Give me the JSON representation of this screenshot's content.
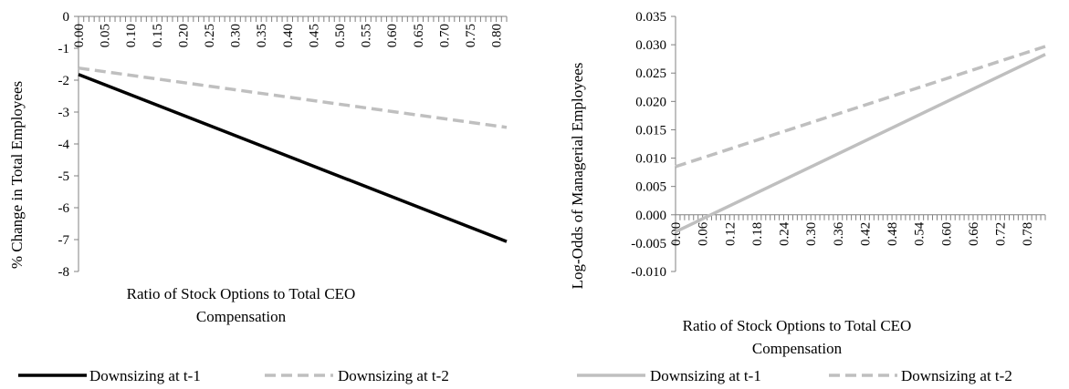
{
  "chart_data": [
    {
      "type": "line",
      "ylabel": "% Change in Total Employees",
      "xlabel_lines": [
        "Ratio of Stock Options to Total CEO",
        "Compensation"
      ],
      "xlim": [
        0,
        0.82
      ],
      "ylim": [
        -8,
        0
      ],
      "yticks": [
        "0",
        "-1",
        "-2",
        "-3",
        "-4",
        "-5",
        "-6",
        "-7",
        "-8"
      ],
      "ytick_values": [
        0,
        -1,
        -2,
        -3,
        -4,
        -5,
        -6,
        -7,
        -8
      ],
      "xticks": [
        "0.00",
        "0.05",
        "0.10",
        "0.15",
        "0.20",
        "0.25",
        "0.30",
        "0.35",
        "0.40",
        "0.45",
        "0.50",
        "0.55",
        "0.60",
        "0.65",
        "0.70",
        "0.75",
        "0.80"
      ],
      "xtick_values": [
        0,
        0.05,
        0.1,
        0.15,
        0.2,
        0.25,
        0.3,
        0.35,
        0.4,
        0.45,
        0.5,
        0.55,
        0.6,
        0.65,
        0.7,
        0.75,
        0.8
      ],
      "grid": false,
      "legend_position": "bottom",
      "series": [
        {
          "name": "Downsizing at t-1",
          "color": "#000000",
          "style": "solid",
          "x": [
            0,
            0.82
          ],
          "y": [
            -1.82,
            -7.06
          ]
        },
        {
          "name": "Downsizing at t-2",
          "color": "#bfbfbf",
          "style": "dashed",
          "x": [
            0,
            0.82
          ],
          "y": [
            -1.62,
            -3.48
          ]
        }
      ]
    },
    {
      "type": "line",
      "ylabel": "Log-Odds of Managerial Employees",
      "xlabel_lines": [
        "Ratio of Stock Options to Total CEO",
        "Compensation"
      ],
      "xlim": [
        0,
        0.82
      ],
      "ylim": [
        -0.01,
        0.035
      ],
      "yticks": [
        "0.035",
        "0.030",
        "0.025",
        "0.020",
        "0.015",
        "0.010",
        "0.005",
        "0.000",
        "-0.005",
        "-0.010"
      ],
      "ytick_values": [
        0.035,
        0.03,
        0.025,
        0.02,
        0.015,
        0.01,
        0.005,
        0.0,
        -0.005,
        -0.01
      ],
      "xticks": [
        "0.00",
        "0.06",
        "0.12",
        "0.18",
        "0.24",
        "0.30",
        "0.36",
        "0.42",
        "0.48",
        "0.54",
        "0.60",
        "0.66",
        "0.72",
        "0.78"
      ],
      "xtick_values": [
        0,
        0.06,
        0.12,
        0.18,
        0.24,
        0.3,
        0.36,
        0.42,
        0.48,
        0.54,
        0.6,
        0.66,
        0.72,
        0.78
      ],
      "grid": false,
      "legend_position": "bottom",
      "series": [
        {
          "name": "Downsizing at t-1",
          "color": "#bfbfbf",
          "style": "solid",
          "x": [
            0,
            0.82
          ],
          "y": [
            -0.003,
            0.0283
          ]
        },
        {
          "name": "Downsizing at t-2",
          "color": "#bfbfbf",
          "style": "dashed",
          "x": [
            0,
            0.82
          ],
          "y": [
            0.0085,
            0.0297
          ]
        }
      ]
    }
  ]
}
